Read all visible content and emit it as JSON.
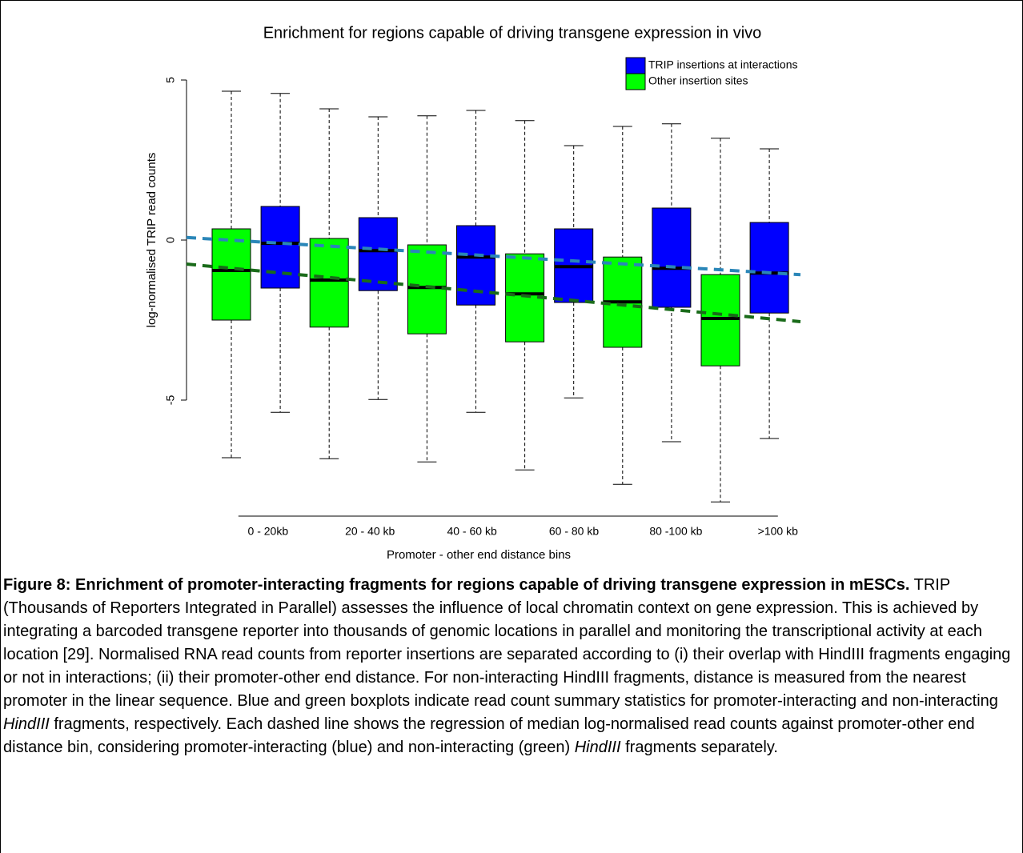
{
  "chart_data": {
    "type": "boxplot",
    "title": "Enrichment for regions capable of driving transgene expression in vivo",
    "x_label": "Promoter - other end distance bins",
    "y_label": "log-normalised TRIP read counts",
    "categories": [
      "0 - 20kb",
      "20 - 40 kb",
      "40 - 60 kb",
      "60 - 80 kb",
      "80 -100 kb",
      ">100 kb"
    ],
    "ylim": [
      -8.5,
      5.8
    ],
    "yticks": [
      -5,
      0,
      5
    ],
    "legend": "top-right",
    "series": [
      {
        "name": "TRIP insertions at interactions",
        "color": "#0000ff",
        "trend_color": "#2a86b8",
        "values": [
          [
            -5.38,
            -1.5,
            -0.1,
            1.05,
            4.58
          ],
          [
            -4.98,
            -1.58,
            -0.33,
            0.7,
            3.85
          ],
          [
            -5.38,
            -2.03,
            -0.53,
            0.45,
            4.05
          ],
          [
            -4.93,
            -1.95,
            -0.83,
            0.35,
            2.95
          ],
          [
            -6.3,
            -2.1,
            -0.88,
            1.0,
            3.63
          ],
          [
            -6.2,
            -2.28,
            -1.03,
            0.55,
            2.85
          ]
        ],
        "trend": [
          0.08,
          -1.08
        ]
      },
      {
        "name": "Other insertion sites",
        "color": "#00ff00",
        "trend_color": "#1a6b1a",
        "values": [
          [
            -6.8,
            -2.5,
            -0.95,
            0.35,
            4.65
          ],
          [
            -6.83,
            -2.72,
            -1.25,
            0.05,
            4.1
          ],
          [
            -6.93,
            -2.93,
            -1.48,
            -0.15,
            3.88
          ],
          [
            -7.18,
            -3.18,
            -1.68,
            -0.43,
            3.73
          ],
          [
            -7.63,
            -3.35,
            -1.93,
            -0.53,
            3.55
          ],
          [
            -8.18,
            -3.93,
            -2.45,
            -1.08,
            3.18
          ]
        ],
        "trend": [
          -0.75,
          -2.55
        ]
      }
    ]
  },
  "caption": {
    "bold": "Figure 8: Enrichment of promoter-interacting fragments for regions capable of driving transgene expression in mESCs.",
    "parts": [
      " TRIP (Thousands of Reporters Integrated in Parallel) assesses the influence of local chromatin context on gene expression. This is achieved by integrating a barcoded transgene reporter into thousands of genomic locations in parallel and monitoring the transcriptional activity at each location [29]. Normalised RNA read counts from reporter insertions are separated according to (i) their overlap with HindIII fragments engaging or not in interactions; (ii) their promoter-other end distance. For non-interacting HindIII fragments, distance is measured from the nearest promoter in the linear sequence. Blue and green boxplots indicate read count summary statistics for promoter-interacting and non-interacting ",
      "HindIII",
      " fragments, respectively. Each dashed line shows the regression of median log-normalised read counts against promoter-other end distance bin, considering promoter-interacting (blue) and non-interacting (green) ",
      "HindIII",
      " fragments separately."
    ]
  }
}
